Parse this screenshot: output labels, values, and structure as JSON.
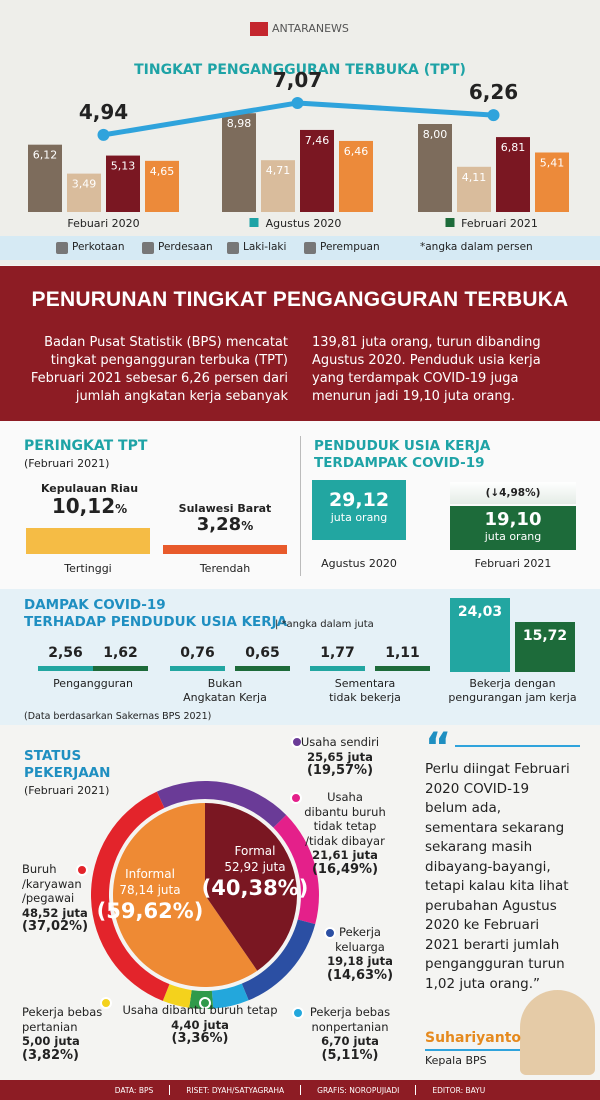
{
  "header": {
    "brand": "ANTARANEWS"
  },
  "tpt": {
    "title": "TINGKAT PENGANGGURAN TERBUKA (TPT)",
    "periods": [
      "Febuari 2020",
      "Agustus 2020",
      "Februari 2021"
    ],
    "totals": [
      4.94,
      7.07,
      6.26
    ],
    "total_labels": [
      "4,94",
      "7,07",
      "6,26"
    ],
    "line_color": "#2fa3dc",
    "series": [
      {
        "name": "Perkotaan",
        "color": "#7d6c5c",
        "values": [
          6.12,
          8.98,
          8.0
        ],
        "value_labels": [
          "6,12",
          "8,98",
          "8,00"
        ]
      },
      {
        "name": "Perdesaan",
        "color": "#d9bc9c",
        "values": [
          3.49,
          4.71,
          4.11
        ],
        "value_labels": [
          "3,49",
          "4,71",
          "4,11"
        ]
      },
      {
        "name": "Laki-laki",
        "color": "#7a1722",
        "values": [
          5.13,
          7.46,
          6.81
        ],
        "value_labels": [
          "5,13",
          "7,46",
          "6,81"
        ]
      },
      {
        "name": "Perempuan",
        "color": "#ec8a3a",
        "values": [
          4.65,
          6.46,
          5.41
        ],
        "value_labels": [
          "4,65",
          "6,46",
          "5,41"
        ]
      }
    ],
    "note": "*angka dalam persen"
  },
  "banner": {
    "title": "PENURUNAN TINGKAT PENGANGGURAN TERBUKA",
    "left": "Badan Pusat Statistik (BPS) mencatat tingkat pengangguran terbuka (TPT) Februari 2021 sebesar 6,26 persen dari jumlah angkatan kerja sebanyak",
    "right": "139,81 juta orang, turun dibanding Agustus 2020. Penduduk usia kerja yang terdampak COVID-19 juga menurun jadi 19,10 juta orang."
  },
  "ranking": {
    "title": "PERINGKAT TPT",
    "subtitle": "(Februari 2021)",
    "items": [
      {
        "region": "Kepulauan Riau",
        "value": "10,12",
        "unit": "%",
        "rank": "Tertinggi"
      },
      {
        "region": "Sulawesi Barat",
        "value": "3,28",
        "unit": "%",
        "rank": "Terendah"
      }
    ]
  },
  "affected": {
    "title": [
      "PENDUDUK USIA KERJA",
      "TERDAMPAK COVID-19"
    ],
    "change": "(↓4,98%)",
    "items": [
      {
        "period": "Agustus 2020",
        "value": "29,12",
        "unit": "juta orang"
      },
      {
        "period": "Februari 2021",
        "value": "19,10",
        "unit": "juta orang"
      }
    ]
  },
  "impact": {
    "title": [
      "DAMPAK COVID-19",
      "TERHADAP PENDUDUK USIA KERJA"
    ],
    "note": "| *angka dalam juta",
    "groups": [
      {
        "label": [
          "Pengangguran"
        ],
        "values": [
          "2,56",
          "1,62"
        ]
      },
      {
        "label": [
          "Bukan",
          "Angkatan Kerja"
        ],
        "values": [
          "0,76",
          "0,65"
        ]
      },
      {
        "label": [
          "Sementara",
          "tidak bekerja"
        ],
        "values": [
          "1,77",
          "1,11"
        ]
      },
      {
        "label": [
          "Bekerja dengan",
          "pengurangan jam kerja"
        ],
        "values": [
          "24,03",
          "15,72"
        ]
      }
    ],
    "source": "(Data berdasarkan Sakernas BPS 2021)"
  },
  "status": {
    "title": [
      "STATUS",
      "PEKERJAAN"
    ],
    "subtitle": "(Februari 2021)",
    "groups": [
      {
        "name": "Informal",
        "amount": "78,14 juta",
        "share": 59.62,
        "share_label": "(59,62%)",
        "color": "#ee8a34"
      },
      {
        "name": "Formal",
        "amount": "52,92 juta",
        "share": 40.38,
        "share_label": "(40,38%)",
        "color": "#7a1722"
      }
    ],
    "segments": [
      {
        "name": [
          "Usaha sendiri"
        ],
        "amount": "25,65 juta",
        "share": 19.57,
        "share_label": "(19,57%)",
        "color": "#6a3b97"
      },
      {
        "name": [
          "Usaha",
          "dibantu buruh",
          "tidak tetap",
          "/tidak dibayar"
        ],
        "amount": "21,61 juta",
        "share": 16.49,
        "share_label": "(16,49%)",
        "color": "#e4208a"
      },
      {
        "name": [
          "Pekerja",
          "keluarga"
        ],
        "amount": "19,18 juta",
        "share": 14.63,
        "share_label": "(14,63%)",
        "color": "#2b4fa3"
      },
      {
        "name": [
          "Pekerja bebas",
          "nonpertanian"
        ],
        "amount": "6,70 juta",
        "share": 5.11,
        "share_label": "(5,11%)",
        "color": "#23a7dc"
      },
      {
        "name": [
          "Usaha dibantu buruh tetap"
        ],
        "amount": "4,40 juta",
        "share": 3.36,
        "share_label": "(3,36%)",
        "color": "#2f9a4a"
      },
      {
        "name": [
          "Pekerja bebas",
          "pertanian"
        ],
        "amount": "5,00 juta",
        "share": 3.82,
        "share_label": "(3,82%)",
        "color": "#f4d21c"
      },
      {
        "name": [
          "Buruh",
          "/karyawan",
          "/pegawai"
        ],
        "amount": "48,52 juta",
        "share": 37.02,
        "share_label": "(37,02%)",
        "color": "#e3242b"
      }
    ]
  },
  "quote": {
    "mark": "“",
    "lines": [
      "Perlu diingat Februari",
      "2020 COVID-19",
      "belum ada,",
      "sementara sekarang",
      "sekarang masih",
      "dibayang-bayangi,",
      "tetapi kalau kita lihat",
      "perubahan Agustus",
      "2020 ke Februari",
      "2021 berarti jumlah",
      "pengangguran turun",
      "1,02 juta orang.”"
    ],
    "speaker": "Suhariyanto",
    "role": "Kepala BPS"
  },
  "footer": {
    "items": [
      "DATA: BPS",
      "RISET: DYAH/SATYAGRAHA",
      "GRAFIS: NOROPUJIADI",
      "EDITOR: BAYU"
    ]
  }
}
